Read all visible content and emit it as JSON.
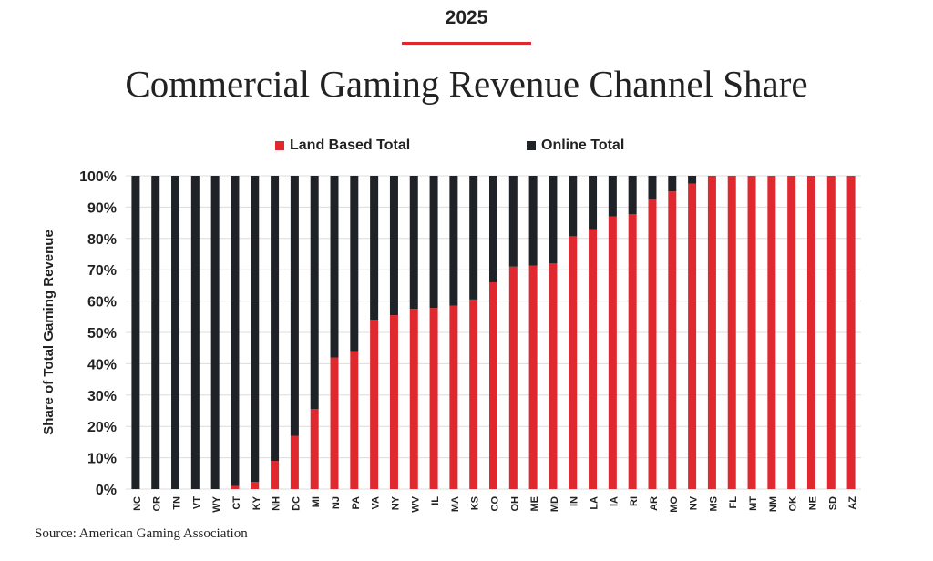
{
  "header": {
    "year": "2025",
    "title": "Commercial Gaming Revenue Channel Share"
  },
  "source": "Source: American Gaming Association",
  "colors": {
    "land": "#e0282f",
    "online": "#1f2226",
    "grid": "#dcdcdc"
  },
  "chart_data": {
    "type": "bar",
    "stacked": true,
    "title": "Commercial Gaming Revenue Channel Share",
    "xlabel": "",
    "ylabel": "Share of Total Gaming Revenue",
    "ylim": [
      0,
      100
    ],
    "yticks": [
      "0%",
      "10%",
      "20%",
      "30%",
      "40%",
      "50%",
      "60%",
      "70%",
      "80%",
      "90%",
      "100%"
    ],
    "grid": true,
    "legend": "top",
    "categories": [
      "NC",
      "OR",
      "TN",
      "VT",
      "WY",
      "CT",
      "KY",
      "NH",
      "DC",
      "MI",
      "NJ",
      "PA",
      "VA",
      "NY",
      "WV",
      "IL",
      "MA",
      "KS",
      "CO",
      "OH",
      "ME",
      "MD",
      "IN",
      "LA",
      "IA",
      "RI",
      "AR",
      "MO",
      "NV",
      "MS",
      "FL",
      "MT",
      "NM",
      "OK",
      "NE",
      "SD",
      "AZ"
    ],
    "series": [
      {
        "name": "Land Based Total",
        "values": [
          0,
          0,
          0,
          0,
          0,
          1,
          2.3,
          9,
          17,
          25.5,
          42,
          44,
          54,
          55.5,
          57.5,
          57.8,
          58.5,
          60.5,
          66,
          71,
          71.3,
          72,
          80.7,
          83,
          87,
          87.7,
          92.5,
          95,
          97.5,
          100,
          100,
          100,
          100,
          100,
          100,
          100,
          100
        ]
      },
      {
        "name": "Online Total",
        "values": [
          100,
          100,
          100,
          100,
          100,
          99,
          97.7,
          91,
          83,
          74.5,
          58,
          56,
          46,
          44.5,
          42.5,
          42.2,
          41.5,
          39.5,
          34,
          29,
          28.7,
          28,
          19.3,
          17,
          13,
          12.3,
          7.5,
          5,
          2.5,
          0,
          0,
          0,
          0,
          0,
          0,
          0,
          0
        ]
      }
    ]
  }
}
